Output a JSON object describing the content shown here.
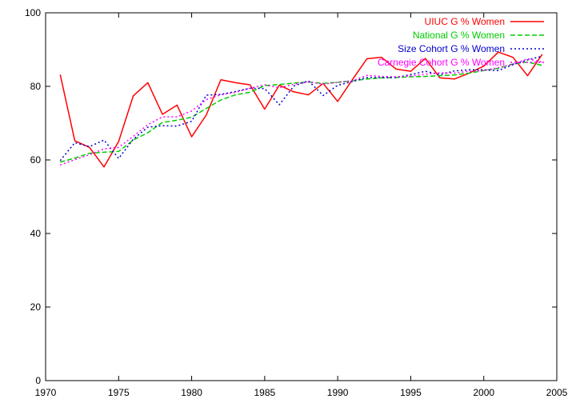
{
  "chart_data": {
    "type": "line",
    "xlim": [
      1970,
      2005
    ],
    "ylim": [
      0,
      100
    ],
    "xticks": [
      "1970",
      "1975",
      "1980",
      "1985",
      "1990",
      "1995",
      "2000",
      "2005"
    ],
    "yticks": [
      "0",
      "20",
      "40",
      "60",
      "80",
      "100"
    ],
    "grid": false,
    "legend_position": "top-right",
    "series": [
      {
        "name": "UIUC G % Women",
        "color": "#ff0000",
        "dash": "solid",
        "x": [
          1971,
          1972,
          1973,
          1974,
          1975,
          1976,
          1977,
          1978,
          1979,
          1980,
          1981,
          1982,
          1983,
          1984,
          1985,
          1986,
          1987,
          1988,
          1989,
          1990,
          1991,
          1992,
          1993,
          1994,
          1995,
          1996,
          1997,
          1998,
          1999,
          2000,
          2001,
          2002,
          2003,
          2004
        ],
        "y": [
          83.2,
          65.2,
          63.4,
          58.1,
          65.0,
          77.4,
          81.0,
          72.4,
          74.9,
          66.3,
          72.2,
          81.8,
          81.0,
          80.4,
          73.8,
          80.3,
          78.5,
          77.7,
          80.8,
          75.9,
          81.8,
          87.5,
          87.9,
          84.7,
          84.1,
          87.6,
          82.3,
          82.0,
          83.6,
          85.5,
          89.3,
          87.9,
          82.9,
          88.7
        ]
      },
      {
        "name": "National G % Women",
        "color": "#00cc00",
        "dash": "dashed",
        "x": [
          1971,
          1972,
          1973,
          1974,
          1975,
          1976,
          1977,
          1978,
          1979,
          1980,
          1981,
          1982,
          1983,
          1984,
          1985,
          1986,
          1987,
          1988,
          1989,
          1990,
          1991,
          1992,
          1993,
          1994,
          1995,
          1996,
          1997,
          1998,
          1999,
          2000,
          2001,
          2002,
          2003,
          2004
        ],
        "y": [
          59.4,
          60.5,
          61.8,
          62.1,
          62.3,
          65.4,
          67.4,
          70.2,
          70.8,
          71.6,
          74.0,
          76.3,
          77.7,
          78.4,
          80.2,
          80.5,
          80.9,
          81.2,
          80.8,
          81.1,
          81.5,
          82.0,
          82.3,
          82.4,
          82.6,
          82.7,
          82.9,
          83.1,
          83.6,
          84.3,
          84.9,
          86.1,
          86.6,
          85.7
        ]
      },
      {
        "name": "Size Cohort G % Women",
        "color": "#0000cc",
        "dash": "dotted",
        "x": [
          1971,
          1972,
          1973,
          1974,
          1975,
          1976,
          1977,
          1978,
          1979,
          1980,
          1981,
          1982,
          1983,
          1984,
          1985,
          1986,
          1987,
          1988,
          1989,
          1990,
          1991,
          1992,
          1993,
          1994,
          1995,
          1996,
          1997,
          1998,
          1999,
          2000,
          2001,
          2002,
          2003,
          2004
        ],
        "y": [
          59.8,
          64.7,
          63.6,
          65.4,
          60.4,
          65.6,
          68.9,
          69.3,
          69.2,
          70.5,
          77.6,
          77.8,
          78.6,
          79.5,
          79.4,
          75.0,
          80.1,
          81.5,
          77.5,
          80.3,
          81.3,
          82.4,
          82.4,
          82.4,
          83.2,
          84.1,
          83.2,
          84.2,
          84.5,
          84.5,
          84.3,
          85.9,
          87.2,
          88.2
        ]
      },
      {
        "name": "Carnegie Cohort G % Women",
        "color": "#ff00ff",
        "dash": "dotted",
        "x": [
          1971,
          1972,
          1973,
          1974,
          1975,
          1976,
          1977,
          1978,
          1979,
          1980,
          1981,
          1982,
          1983,
          1984,
          1985,
          1986,
          1987,
          1988,
          1989,
          1990,
          1991,
          1992,
          1993,
          1994,
          1995,
          1996,
          1997,
          1998,
          1999,
          2000,
          2001,
          2002,
          2003,
          2004
        ],
        "y": [
          58.6,
          60.1,
          61.4,
          63.0,
          63.4,
          66.4,
          69.6,
          71.7,
          71.7,
          73.3,
          76.4,
          77.7,
          78.4,
          79.5,
          80.4,
          79.6,
          80.6,
          81.2,
          80.6,
          81.1,
          81.5,
          83.0,
          82.7,
          82.6,
          82.8,
          83.3,
          83.7,
          83.6,
          84.1,
          84.3,
          85.1,
          86.0,
          87.5,
          86.6
        ]
      }
    ]
  }
}
